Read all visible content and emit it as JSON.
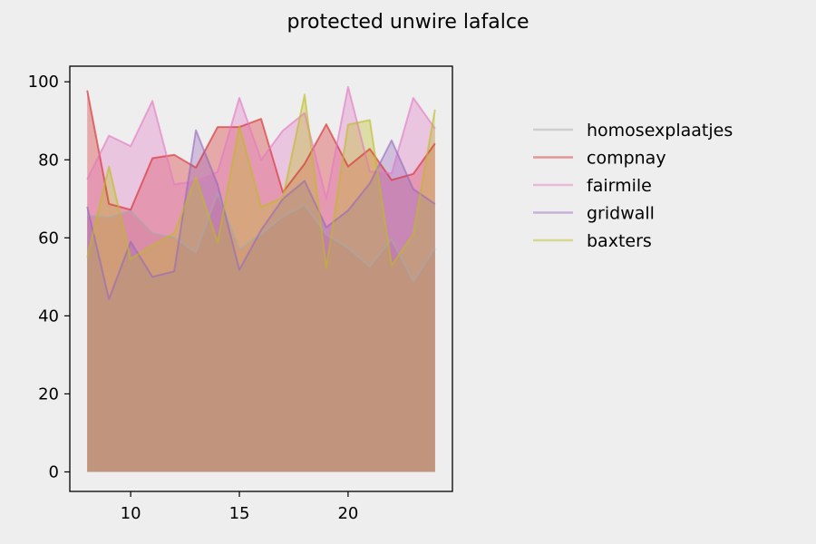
{
  "chart_data": {
    "type": "area",
    "title": "protected unwire lafalce",
    "xlabel": "",
    "ylabel": "",
    "xlim": [
      7.2,
      24.8
    ],
    "ylim": [
      -5,
      104
    ],
    "x_ticks": [
      10,
      15,
      20
    ],
    "y_ticks": [
      0,
      20,
      40,
      60,
      80,
      100
    ],
    "grid": false,
    "legend_position": "right",
    "x": [
      8,
      9,
      10,
      11,
      12,
      13,
      14,
      15,
      16,
      17,
      18,
      19,
      20,
      21,
      22,
      23,
      24
    ],
    "series": [
      {
        "name": "homosexplaatjes",
        "color": "#a9a9a9",
        "values": [
          65.7,
          65.2,
          67.0,
          61.2,
          60.1,
          56.2,
          71.4,
          57.0,
          61.0,
          65.5,
          68.4,
          60.8,
          57.4,
          52.6,
          59.6,
          48.8,
          57.3
        ]
      },
      {
        "name": "compnay",
        "color": "#d62728",
        "values": [
          97.8,
          68.7,
          67.2,
          80.4,
          81.3,
          78.0,
          88.4,
          88.4,
          90.5,
          71.7,
          79.0,
          89.1,
          78.3,
          82.8,
          74.8,
          76.4,
          84.2
        ]
      },
      {
        "name": "fairmile",
        "color": "#e377c2",
        "values": [
          75.0,
          86.2,
          83.5,
          95.1,
          73.7,
          74.5,
          76.9,
          95.9,
          80.0,
          87.5,
          92.0,
          70.0,
          98.7,
          77.0,
          76.5,
          95.9,
          88.0
        ]
      },
      {
        "name": "gridwall",
        "color": "#9467bd",
        "values": [
          68.0,
          44.3,
          59.0,
          50.0,
          51.4,
          87.6,
          73.7,
          51.8,
          62.0,
          70.0,
          74.6,
          62.7,
          67.0,
          74.0,
          85.0,
          72.5,
          68.7
        ]
      },
      {
        "name": "baxters",
        "color": "#bcbd22",
        "values": [
          55.0,
          78.3,
          54.6,
          58.1,
          61.2,
          75.5,
          58.8,
          88.6,
          67.9,
          70.3,
          96.7,
          52.3,
          89.0,
          90.2,
          52.9,
          61.0,
          92.9
        ]
      }
    ]
  }
}
